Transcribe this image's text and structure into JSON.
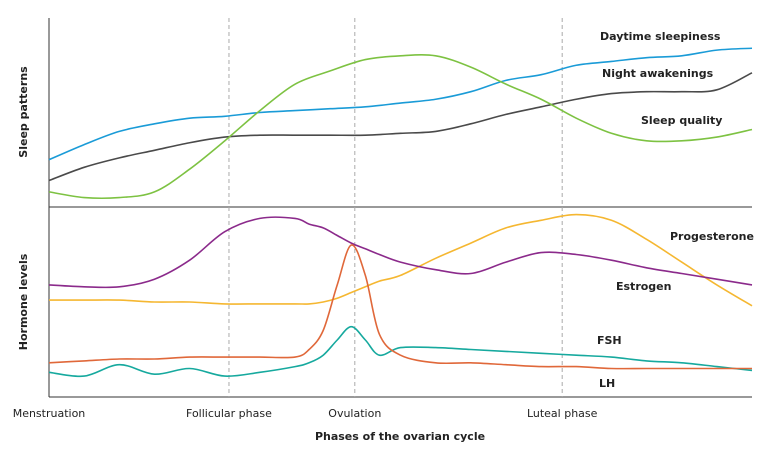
{
  "chart_data": [
    {
      "type": "line",
      "ylabel": "Sleep patterns",
      "x": [
        0,
        5,
        10,
        15,
        20,
        25,
        30,
        35,
        40,
        45,
        50,
        55,
        60,
        65,
        70,
        75,
        80,
        85,
        90,
        95,
        100
      ],
      "xlim": [
        0,
        100
      ],
      "ylim": [
        0,
        100
      ],
      "series": [
        {
          "name": "Daytime sleepiness",
          "color": "#1a9bd7",
          "values": [
            25,
            33,
            40,
            44,
            47,
            48,
            50,
            51,
            52,
            53,
            55,
            57,
            61,
            67,
            70,
            75,
            77,
            79,
            80,
            83,
            84
          ]
        },
        {
          "name": "Night awakenings",
          "color": "#4a4a4a",
          "values": [
            14,
            21,
            26,
            30,
            34,
            37,
            38,
            38,
            38,
            38,
            39,
            40,
            44,
            49,
            53,
            57,
            60,
            61,
            61,
            62,
            71
          ]
        },
        {
          "name": "Sleep quality",
          "color": "#7dc242",
          "values": [
            8,
            5,
            5,
            8,
            20,
            35,
            51,
            65,
            72,
            78,
            80,
            80,
            74,
            65,
            57,
            47,
            39,
            35,
            35,
            37,
            41
          ]
        }
      ]
    },
    {
      "type": "line",
      "ylabel": "Hormone levels",
      "xlabel": "Phases of the ovarian cycle",
      "x": [
        0,
        5,
        10,
        15,
        20,
        25,
        30,
        35,
        37,
        39,
        41,
        43,
        45,
        47,
        50,
        55,
        60,
        65,
        70,
        75,
        80,
        85,
        90,
        95,
        100
      ],
      "xlim": [
        0,
        100
      ],
      "ylim": [
        0,
        100
      ],
      "xticks": [
        {
          "value": 0,
          "label": "Menstruation"
        },
        {
          "value": 25.6,
          "label": "Follicular phase"
        },
        {
          "value": 43.5,
          "label": "Ovulation"
        },
        {
          "value": 73,
          "label": "Luteal phase"
        }
      ],
      "grid": true,
      "series": [
        {
          "name": "Progesterone",
          "color": "#f5b731",
          "values": [
            51,
            51,
            51,
            50,
            50,
            49,
            49,
            49,
            49,
            50,
            52,
            55,
            58,
            61,
            64,
            73,
            81,
            89,
            93,
            96,
            93,
            83,
            71,
            59,
            48
          ]
        },
        {
          "name": "Estrogen",
          "color": "#8b2a8b",
          "values": [
            59,
            58,
            58,
            62,
            72,
            87,
            94,
            94,
            91,
            89,
            85,
            81,
            78,
            75,
            71,
            67,
            65,
            71,
            76,
            75,
            72,
            68,
            65,
            62,
            59
          ]
        },
        {
          "name": "FSH",
          "color": "#16a99e",
          "values": [
            13,
            11,
            17,
            12,
            15,
            11,
            13,
            16,
            18,
            22,
            30,
            37,
            30,
            22,
            26,
            26,
            25,
            24,
            23,
            22,
            21,
            19,
            18,
            16,
            14
          ]
        },
        {
          "name": "LH",
          "color": "#e0683a",
          "values": [
            18,
            19,
            20,
            20,
            21,
            21,
            21,
            21,
            25,
            35,
            59,
            80,
            64,
            33,
            22,
            18,
            18,
            17,
            16,
            16,
            15,
            15,
            15,
            15,
            15
          ]
        }
      ]
    }
  ]
}
